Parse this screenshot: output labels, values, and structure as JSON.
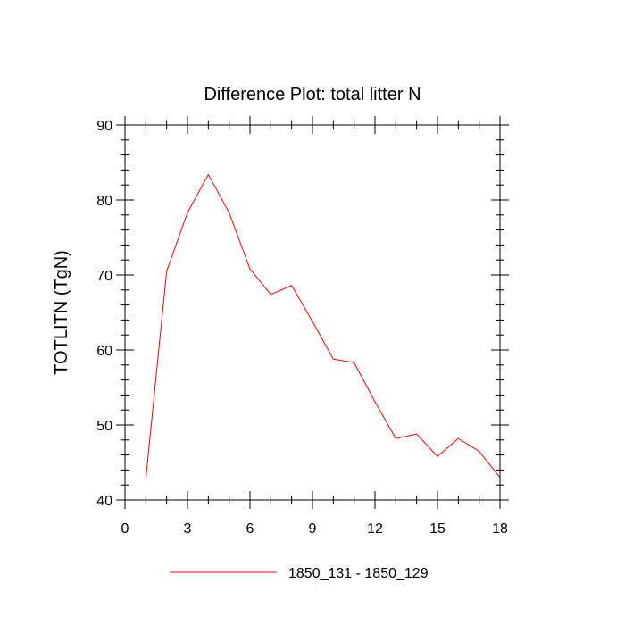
{
  "chart_data": {
    "type": "line",
    "title": "Difference Plot: total litter N",
    "xlabel": "",
    "ylabel": "TOTLITN  (TgN)",
    "xlim": [
      0,
      18
    ],
    "ylim": [
      40,
      90
    ],
    "x_major_ticks": [
      0,
      3,
      6,
      9,
      12,
      15,
      18
    ],
    "x_tick_labels": [
      "0",
      "3",
      "6",
      "9",
      "12",
      "15",
      "18"
    ],
    "y_major_ticks": [
      40,
      50,
      60,
      70,
      80,
      90
    ],
    "y_tick_labels": [
      "40",
      "50",
      "60",
      "70",
      "80",
      "90"
    ],
    "grid": false,
    "legend_position": "bottom",
    "series": [
      {
        "name": "1850_131 - 1850_129",
        "color": "#ff0000",
        "x": [
          1,
          2,
          3,
          4,
          5,
          6,
          7,
          8,
          9,
          10,
          11,
          12,
          13,
          14,
          15,
          16,
          17,
          18
        ],
        "y": [
          42.8,
          70.5,
          78.3,
          83.4,
          78.3,
          70.8,
          67.4,
          68.6,
          63.8,
          58.8,
          58.3,
          53.1,
          48.2,
          48.8,
          45.8,
          48.2,
          46.5,
          43.0
        ]
      }
    ]
  }
}
